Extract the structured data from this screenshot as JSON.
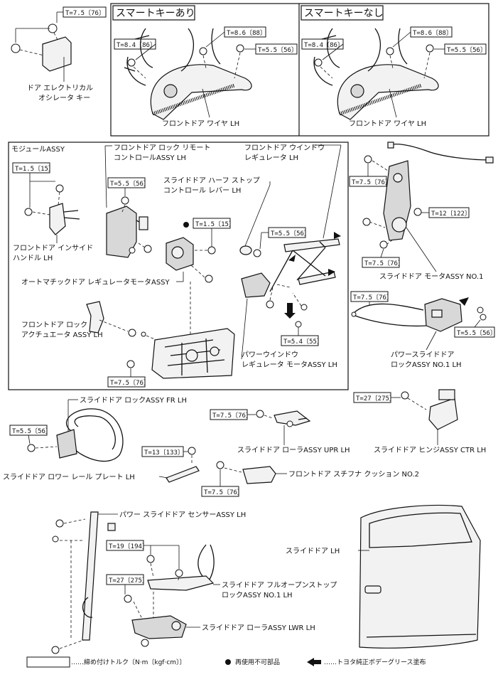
{
  "sections": {
    "smart_key_yes": "スマートキーあり",
    "smart_key_no": "スマートキーなし"
  },
  "torques": {
    "t_7_5_76": "T=7.5〔76〕",
    "t_8_6_88": "T=8.6〔88〕",
    "t_8_4_86": "T=8.4〔86〕",
    "t_5_5_56": "T=5.5〔56〕",
    "t_1_5_15": "T=1.5〔15〕",
    "t_12_122": "T=12〔122〕",
    "t_5_4_55": "T=5.4〔55〕",
    "t_27_275": "T=27〔275〕",
    "t_13_133": "T=13〔133〕",
    "t_19_194": "T=19〔194〕"
  },
  "labels": {
    "oscillator_line1": "ドア エレクトリカル",
    "oscillator_line2": "オシレータ キー",
    "wire_lh": "フロントドア ワイヤ LH",
    "module_assy": "モジュールASSY",
    "remote_ctrl_line1": "フロントドア ロック リモート",
    "remote_ctrl_line2": "コントロールASSY LH",
    "window_reg_line1": "フロントドア ウインドウ",
    "window_reg_line2": "レギュレータ LH",
    "half_stop_line1": "スライドドア ハーフ ストップ",
    "half_stop_line2": "コントロール レバー LH",
    "inside_handle_line1": "フロントドア インサイド",
    "inside_handle_line2": "ハンドル LH",
    "auto_reg_motor": "オートマチックドア レギュレータモータASSY",
    "lock_actuator_line1": "フロントドア ロック",
    "lock_actuator_line2": "アクチュエータ ASSY LH",
    "pw_motor_line1": "パワーウインドウ",
    "pw_motor_line2": "レギュレータ モータASSY LH",
    "slide_motor": "スライドドア モータASSY NO.1",
    "pw_slide_lock_line1": "パワースライドドア",
    "pw_slide_lock_line2": "ロックASSY NO.1 LH",
    "slide_lock_fr": "スライドドア ロックASSY FR LH",
    "lower_rail_plate": "スライドドア ロワー レール プレート LH",
    "roller_upr": "スライドドア ローラASSY UPR LH",
    "hinge_ctr": "スライドドア ヒンジASSY CTR LH",
    "stopper_cushion": "フロントドア スチフナ クッション NO.2",
    "sensor_assy": "パワー スライドドア センサーASSY LH",
    "slide_door": "スライドドア LH",
    "full_open_line1": "スライドドア フルオープンストップ",
    "full_open_line2": "ロックASSY NO.1 LH",
    "roller_lwr": "スライドドア ローラASSY LWR LH"
  },
  "legend": {
    "torque": "……締め付けトルク〔N·m〔kgf·cm〕〕",
    "non_reusable": "再使用不可部品",
    "grease": "……トヨタ純正ボデーグリース塗布"
  }
}
